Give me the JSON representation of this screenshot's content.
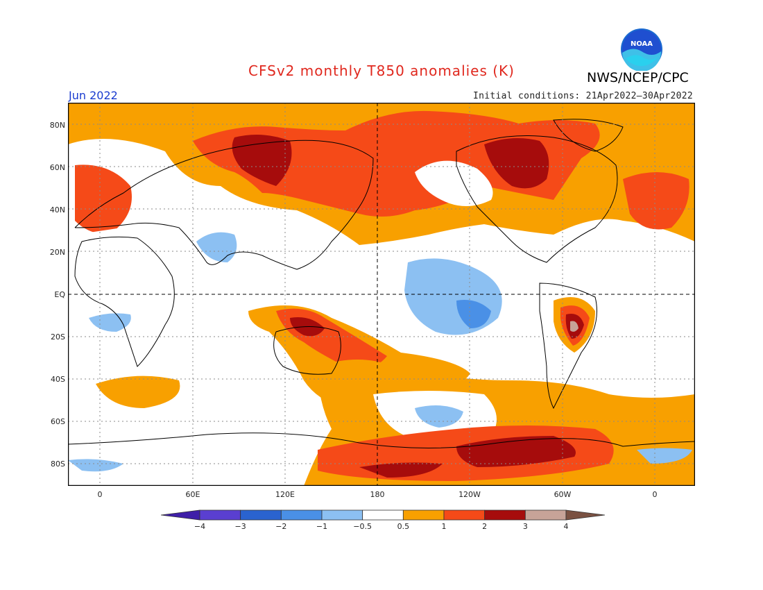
{
  "header": {
    "title": "CFSv2 monthly T850 anomalies (K)",
    "agency": "NWS/NCEP/CPC",
    "month": "Jun 2022",
    "initial_conditions": "Initial conditions: 21Apr2022–30Apr2022",
    "logo_text": "NOAA"
  },
  "map": {
    "lat_labels": [
      "80N",
      "60N",
      "40N",
      "20N",
      "EQ",
      "20S",
      "40S",
      "60S",
      "80S"
    ],
    "lon_labels": [
      "0",
      "60E",
      "120E",
      "180",
      "120W",
      "60W",
      "0"
    ]
  },
  "colorbar": {
    "labels": [
      "−4",
      "−3",
      "−2",
      "−1",
      "−0.5",
      "0.5",
      "1",
      "2",
      "3",
      "4"
    ],
    "colors": [
      "#3f1fa8",
      "#5a3fd0",
      "#2a63cf",
      "#4a90e6",
      "#8cc0f2",
      "#ffffff",
      "#f8a000",
      "#f54a18",
      "#a60c0c",
      "#c7a398",
      "#7a5142"
    ]
  },
  "palette": {
    "title_red": "#e0281e",
    "month_blue": "#1a3ccf",
    "light_blue": "#8cc0f2",
    "mid_blue": "#4a90e6",
    "orange": "#f8a000",
    "red": "#f54a18",
    "dark_red": "#a60c0c",
    "brown": "#c7a398"
  }
}
